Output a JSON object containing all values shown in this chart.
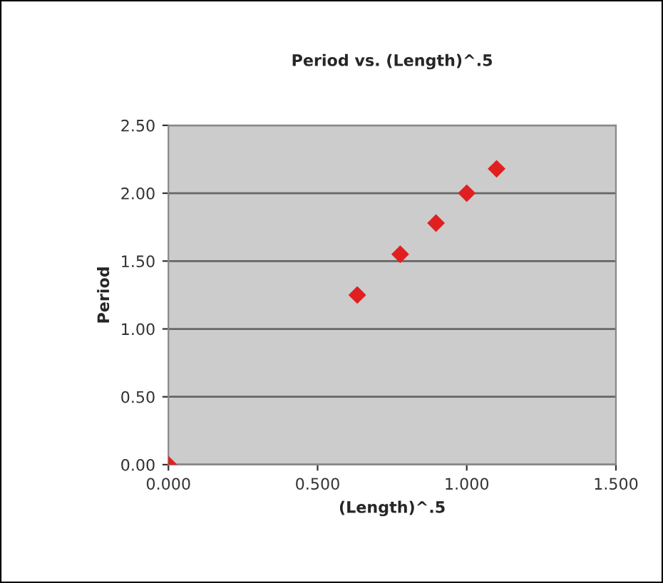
{
  "chart_data": {
    "type": "scatter",
    "title": "Period vs. (Length)^.5",
    "xlabel": "(Length)^.5",
    "ylabel": "Period",
    "x": [
      0,
      0.633,
      0.777,
      0.897,
      1.0,
      1.1
    ],
    "series": [
      {
        "color": "#e02020",
        "values": [
          0,
          1.25,
          1.55,
          1.78,
          2.0,
          2.18
        ]
      }
    ],
    "xlim": [
      0,
      1.5
    ],
    "xticks": [
      {
        "value": 0,
        "label": "0.000"
      },
      {
        "value": 0.5,
        "label": "0.500"
      },
      {
        "value": 1.0,
        "label": "1.000"
      },
      {
        "value": 1.5,
        "label": "1.500"
      }
    ],
    "ylim": [
      0,
      2.5
    ],
    "yticks": [
      {
        "value": 0,
        "label": "0.00"
      },
      {
        "value": 0.5,
        "label": "0.50"
      },
      {
        "value": 1.0,
        "label": "1.00"
      },
      {
        "value": 1.5,
        "label": "1.50"
      },
      {
        "value": 2.0,
        "label": "2.00"
      },
      {
        "value": 2.5,
        "label": "2.50"
      }
    ],
    "grid": "y",
    "marker": "diamond"
  }
}
